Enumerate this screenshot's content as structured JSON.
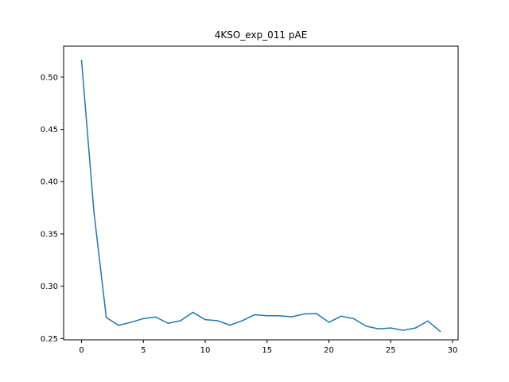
{
  "chart_data": {
    "type": "line",
    "title": "4KSO_exp_011 pAE",
    "xlabel": "",
    "ylabel": "",
    "xlim": [
      -1.45,
      30.45
    ],
    "ylim": [
      0.2487,
      0.5296
    ],
    "xticks": [
      0,
      5,
      10,
      15,
      20,
      25,
      30
    ],
    "yticks": [
      0.25,
      0.3,
      0.35,
      0.4,
      0.45,
      0.5
    ],
    "ytick_labels": [
      "0.25",
      "0.30",
      "0.35",
      "0.40",
      "0.45",
      "0.50"
    ],
    "grid": false,
    "series": [
      {
        "color": "#1f77b4",
        "x": [
          0,
          1,
          2,
          3,
          4,
          5,
          6,
          7,
          8,
          9,
          10,
          11,
          12,
          13,
          14,
          15,
          16,
          17,
          18,
          19,
          20,
          21,
          22,
          23,
          24,
          25,
          26,
          27,
          28,
          29
        ],
        "values": [
          0.516,
          0.371,
          0.27,
          0.2625,
          0.2655,
          0.269,
          0.2705,
          0.2645,
          0.267,
          0.275,
          0.268,
          0.267,
          0.2627,
          0.267,
          0.2727,
          0.2717,
          0.2717,
          0.2707,
          0.2734,
          0.2738,
          0.2655,
          0.2713,
          0.269,
          0.2618,
          0.2592,
          0.26,
          0.2578,
          0.26,
          0.2667,
          0.2568
        ]
      }
    ]
  }
}
